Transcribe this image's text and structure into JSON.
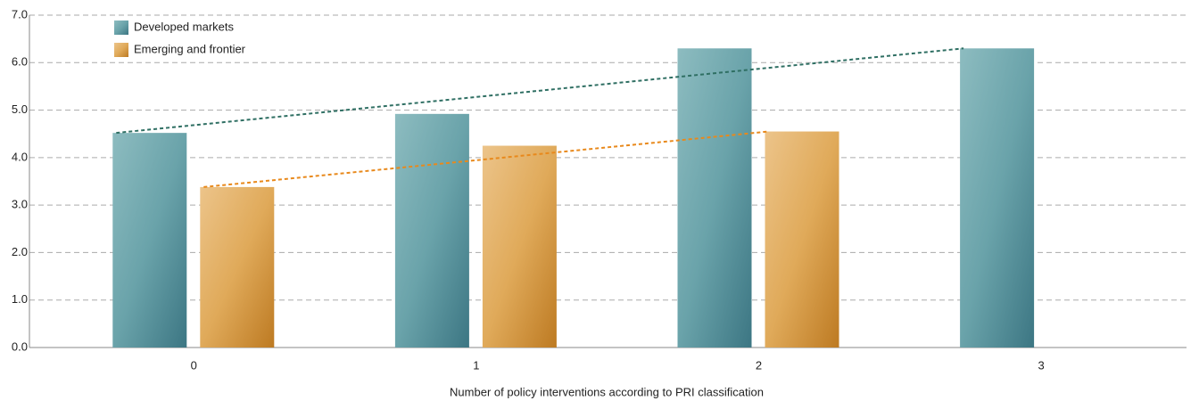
{
  "chart_data": {
    "type": "bar",
    "xlabel": "Number of policy interventions according to PRI classification",
    "categories": [
      "0",
      "1",
      "2",
      "3"
    ],
    "series": [
      {
        "name": "Developed markets",
        "color": "#4f8e98",
        "values": [
          4.52,
          4.92,
          6.3,
          6.3
        ],
        "trendline": true,
        "trendline_color": "#2f6f63"
      },
      {
        "name": "Emerging and frontier",
        "color": "#dba24a",
        "values": [
          3.38,
          4.25,
          4.55,
          null
        ],
        "trendline": true,
        "trendline_color": "#e8891c"
      }
    ],
    "ylim": [
      0,
      7
    ],
    "yticks": [
      {
        "value": 0,
        "label": "0.0"
      },
      {
        "value": 1,
        "label": "1.0"
      },
      {
        "value": 2,
        "label": "2.0"
      },
      {
        "value": 3,
        "label": "3.0"
      },
      {
        "value": 4,
        "label": "4.0"
      },
      {
        "value": 5,
        "label": "5.0"
      },
      {
        "value": 6,
        "label": "6.0"
      },
      {
        "value": 7,
        "label": "7.0"
      }
    ],
    "grid": true,
    "legend": "upper left"
  }
}
